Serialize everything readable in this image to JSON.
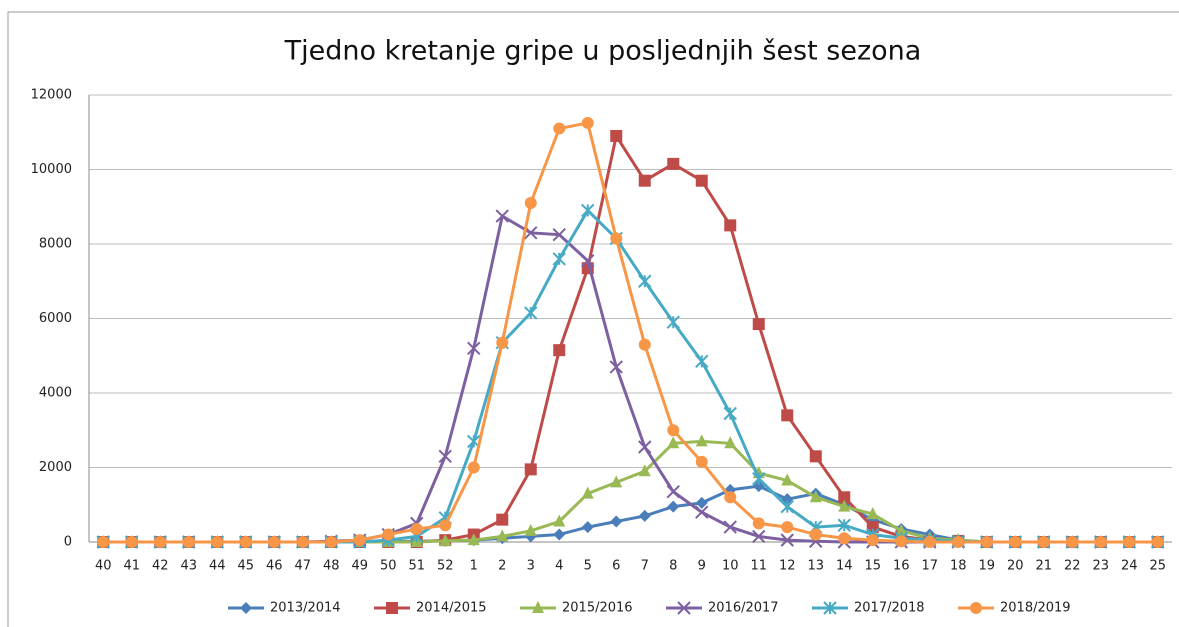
{
  "chart_data": {
    "type": "line",
    "title": "Tjedno kretanje gripe u posljednjih šest sezona",
    "categories": [
      "40",
      "41",
      "42",
      "43",
      "44",
      "45",
      "46",
      "47",
      "48",
      "49",
      "50",
      "51",
      "52",
      "1",
      "2",
      "3",
      "4",
      "5",
      "6",
      "7",
      "8",
      "9",
      "10",
      "11",
      "12",
      "13",
      "14",
      "15",
      "16",
      "17",
      "18",
      "19",
      "20",
      "21",
      "22",
      "23",
      "24",
      "25"
    ],
    "ylim": [
      0,
      12000
    ],
    "yticks": [
      0,
      2000,
      4000,
      6000,
      8000,
      10000,
      12000
    ],
    "grid": true,
    "legend": "bottom",
    "series": [
      {
        "name": "2013/2014",
        "color": "#4a7ebb",
        "marker": "diamond",
        "values": [
          0,
          0,
          0,
          0,
          0,
          0,
          0,
          0,
          0,
          0,
          10,
          20,
          30,
          50,
          100,
          150,
          200,
          400,
          550,
          700,
          950,
          1050,
          1400,
          1500,
          1150,
          1300,
          1000,
          600,
          350,
          200,
          50,
          0,
          0,
          0,
          0,
          0,
          0,
          0
        ]
      },
      {
        "name": "2014/2015",
        "color": "#be4b48",
        "marker": "square",
        "values": [
          0,
          0,
          0,
          0,
          0,
          0,
          0,
          0,
          0,
          0,
          0,
          0,
          50,
          200,
          600,
          1950,
          5150,
          7350,
          10900,
          9700,
          10150,
          9700,
          8500,
          5850,
          3400,
          2300,
          1200,
          400,
          150,
          50,
          30,
          0,
          0,
          0,
          0,
          0,
          0,
          0
        ]
      },
      {
        "name": "2015/2016",
        "color": "#98b954",
        "marker": "triangle",
        "values": [
          0,
          0,
          0,
          0,
          0,
          0,
          0,
          0,
          0,
          0,
          0,
          0,
          30,
          50,
          150,
          300,
          550,
          1300,
          1600,
          1900,
          2650,
          2700,
          2650,
          1850,
          1650,
          1200,
          950,
          750,
          300,
          100,
          50,
          0,
          0,
          0,
          0,
          0,
          0,
          0
        ]
      },
      {
        "name": "2016/2017",
        "color": "#7d60a0",
        "marker": "x",
        "values": [
          0,
          0,
          0,
          0,
          0,
          0,
          0,
          0,
          20,
          50,
          200,
          500,
          2300,
          5200,
          8750,
          8300,
          8250,
          7550,
          4700,
          2550,
          1350,
          800,
          400,
          150,
          50,
          20,
          0,
          0,
          0,
          0,
          0,
          0,
          0,
          0,
          0,
          0,
          0,
          0
        ]
      },
      {
        "name": "2017/2018",
        "color": "#46aac5",
        "marker": "asterisk",
        "values": [
          0,
          0,
          0,
          0,
          0,
          0,
          0,
          0,
          0,
          0,
          50,
          150,
          650,
          2700,
          5350,
          6150,
          7600,
          8900,
          8150,
          7000,
          5900,
          4850,
          3450,
          1700,
          950,
          400,
          450,
          200,
          100,
          50,
          20,
          0,
          0,
          0,
          0,
          0,
          0,
          0
        ]
      },
      {
        "name": "2018/2019",
        "color": "#f79646",
        "marker": "circle",
        "values": [
          0,
          0,
          0,
          0,
          0,
          0,
          0,
          0,
          0,
          50,
          200,
          350,
          450,
          2000,
          5350,
          9100,
          11100,
          11250,
          8150,
          5300,
          3000,
          2150,
          1200,
          500,
          400,
          200,
          100,
          50,
          20,
          0,
          0,
          0,
          0,
          0,
          0,
          0,
          0,
          0
        ]
      }
    ]
  }
}
